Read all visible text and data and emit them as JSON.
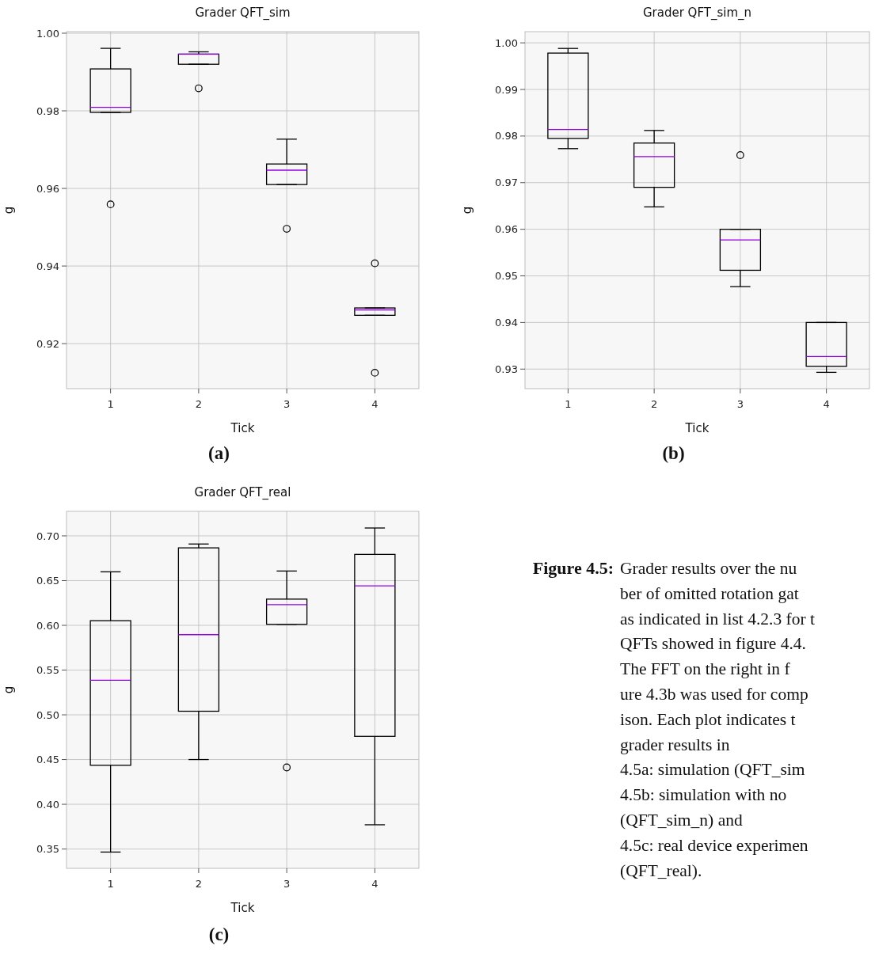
{
  "chart_data": [
    {
      "type": "box",
      "title": "Grader QFT_sim",
      "xlabel": "Tick",
      "ylabel": "g",
      "categories": [
        "1",
        "2",
        "3",
        "4"
      ],
      "ylim": [
        0.9084,
        1.0004
      ],
      "yticks": [
        0.92,
        0.94,
        0.96,
        0.98,
        {
          "value": 1,
          "label": "1.00"
        }
      ],
      "grid": true,
      "annotations": [
        "(a)"
      ],
      "series": [
        {
          "color": "#000000",
          "boxes": [
            {
              "low": 0.9796,
              "q1": 0.9796,
              "median": 0.9809,
              "q3": 0.9908,
              "high": 0.9961,
              "outliers": [
                0.9559
              ]
            },
            {
              "low": 0.992,
              "q1": 0.992,
              "median": 0.9946,
              "q3": 0.9946,
              "high": 0.9952,
              "outliers": [
                0.9858
              ]
            },
            {
              "low": 0.961,
              "q1": 0.961,
              "median": 0.9647,
              "q3": 0.9663,
              "high": 0.9727,
              "outliers": [
                0.9496
              ]
            },
            {
              "low": 0.9273,
              "q1": 0.9273,
              "median": 0.9287,
              "q3": 0.9292,
              "high": 0.9292,
              "outliers": [
                0.9407,
                0.9125
              ]
            }
          ]
        }
      ]
    },
    {
      "type": "box",
      "title": "Grader QFT_sim_n",
      "xlabel": "Tick",
      "ylabel": "g",
      "categories": [
        "1",
        "2",
        "3",
        "4"
      ],
      "ylim": [
        0.9258,
        1.0024
      ],
      "yticks": [
        0.93,
        0.94,
        0.95,
        0.96,
        0.97,
        0.98,
        0.99,
        {
          "value": 1,
          "label": "1.00"
        }
      ],
      "grid": true,
      "annotations": [
        "(b)"
      ],
      "series": [
        {
          "color": "#000000",
          "boxes": [
            {
              "low": 0.9773,
              "q1": 0.9795,
              "median": 0.9814,
              "q3": 0.9978,
              "high": 0.9988
            },
            {
              "low": 0.9648,
              "q1": 0.969,
              "median": 0.9756,
              "q3": 0.9785,
              "high": 0.9812
            },
            {
              "low": 0.9477,
              "q1": 0.9512,
              "median": 0.9577,
              "q3": 0.96,
              "high": 0.96,
              "outliers": [
                0.9759
              ]
            },
            {
              "low": 0.9293,
              "q1": 0.9306,
              "median": 0.9327,
              "q3": 0.94,
              "high": 0.94
            }
          ]
        }
      ]
    },
    {
      "type": "box",
      "title": "Grader QFT_real",
      "xlabel": "Tick",
      "ylabel": "g",
      "categories": [
        "1",
        "2",
        "3",
        "4"
      ],
      "ylim": [
        0.3284,
        0.7274
      ],
      "yticks": [
        0.35,
        {
          "value": 0.4,
          "label": "0.40"
        },
        0.45,
        {
          "value": 0.5,
          "label": "0.50"
        },
        0.55,
        {
          "value": 0.6,
          "label": "0.60"
        },
        0.65,
        {
          "value": 0.7,
          "label": "0.70"
        }
      ],
      "grid": true,
      "annotations": [
        "(c)"
      ],
      "series": [
        {
          "color": "#000000",
          "boxes": [
            {
              "low": 0.3466,
              "q1": 0.4436,
              "median": 0.5387,
              "q3": 0.6052,
              "high": 0.6598
            },
            {
              "low": 0.45,
              "q1": 0.504,
              "median": 0.5896,
              "q3": 0.6866,
              "high": 0.6909
            },
            {
              "low": 0.6012,
              "q1": 0.6012,
              "median": 0.6232,
              "q3": 0.6293,
              "high": 0.6607,
              "outliers": [
                0.4412
              ]
            },
            {
              "low": 0.3771,
              "q1": 0.4759,
              "median": 0.6442,
              "q3": 0.6793,
              "high": 0.7088
            }
          ]
        }
      ]
    },
    {
      "type": "other",
      "title": "Figure 4.5:",
      "annotations": [
        "Grader results over the nu",
        "ber of omitted rotation gat",
        "as indicated in list 4.2.3 for t",
        "QFTs showed in figure 4.4.",
        "The FFT on the right in f",
        "ure 4.3b was used for comp",
        "ison. Each plot indicates t",
        "grader results in",
        "4.5a: simulation (QFT_sim",
        "4.5b: simulation with no",
        "(QFT_sim_n) and",
        "4.5c: real device experimen",
        "(QFT_real)."
      ]
    }
  ]
}
